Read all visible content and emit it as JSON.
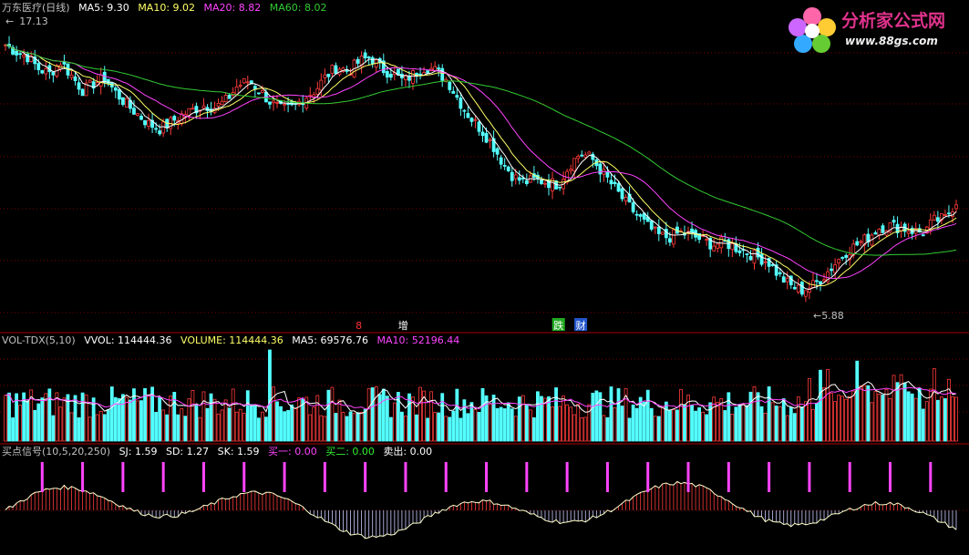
{
  "app": {
    "stock_name": "万东医疗",
    "period": "(日线)"
  },
  "colors": {
    "up": "#ff3b3b",
    "down": "#54ffff",
    "ma5": "#ffffff",
    "ma10": "#ffff66",
    "ma20": "#ff44ff",
    "ma60": "#33cc33",
    "grid": "#7a0000",
    "buy1": "#ff44ff",
    "buy2": "#33ee33"
  },
  "price_panel": {
    "header": {
      "ma5": "MA5: 9.30",
      "ma10": "MA10: 9.02",
      "ma20": "MA20: 8.82",
      "ma60": "MA60: 8.02"
    },
    "high_label": "17.13",
    "low_label": "5.88",
    "markers": [
      {
        "text": "8",
        "x_index": 32,
        "color": "#ff3333"
      },
      {
        "text": "增",
        "x_index": 36,
        "color": "#ffffff"
      },
      {
        "text": "跌",
        "x_index": 50,
        "color": "#ffffff",
        "bg": "#22aa22"
      },
      {
        "text": "财",
        "x_index": 52,
        "color": "#ffffff",
        "bg": "#2255cc"
      }
    ]
  },
  "volume_panel": {
    "header": {
      "name": "VOL-TDX(5,10)",
      "vvol": "VVOL: 114444.36",
      "volume": "VOLUME: 114444.36",
      "ma5": "MA5: 69576.76",
      "ma10": "MA10: 52196.44"
    }
  },
  "signal_panel": {
    "header": {
      "name": "买点信号(10,5,20,250)",
      "sj": "SJ: 1.59",
      "sd": "SD: 1.27",
      "sk": "SK: 1.59",
      "buy1": "买一: 0.00",
      "buy2": "买二: 0.00",
      "sell": "卖出: 0.00"
    }
  },
  "logo": {
    "title": "分析家公式网",
    "url": "www.88gs.com"
  },
  "chart_data": {
    "type": "candlestick",
    "close": [
      16.5,
      16.2,
      16.0,
      15.5,
      15.3,
      15.8,
      15.2,
      14.6,
      14.9,
      15.1,
      14.5,
      14.0,
      13.6,
      13.2,
      13.0,
      13.3,
      13.6,
      13.8,
      14.0,
      13.9,
      14.2,
      14.8,
      15.0,
      14.6,
      14.1,
      13.8,
      13.9,
      14.3,
      14.6,
      15.2,
      15.6,
      15.4,
      15.8,
      16.0,
      15.5,
      15.3,
      15.0,
      15.3,
      15.6,
      15.4,
      15.0,
      14.2,
      13.5,
      13.0,
      12.4,
      11.6,
      11.0,
      10.8,
      10.9,
      10.8,
      10.7,
      11.5,
      12.0,
      11.8,
      11.2,
      10.6,
      10.0,
      9.5,
      9.0,
      8.6,
      8.5,
      8.7,
      8.6,
      8.4,
      8.2,
      8.3,
      8.1,
      7.9,
      7.7,
      7.5,
      6.9,
      6.5,
      6.3,
      6.5,
      6.9,
      7.4,
      7.9,
      8.2,
      8.5,
      8.9,
      9.0,
      8.9,
      8.8,
      8.7,
      9.2,
      9.3,
      10.0
    ],
    "low_label_value": 5.88,
    "high_label_value": 17.13
  }
}
